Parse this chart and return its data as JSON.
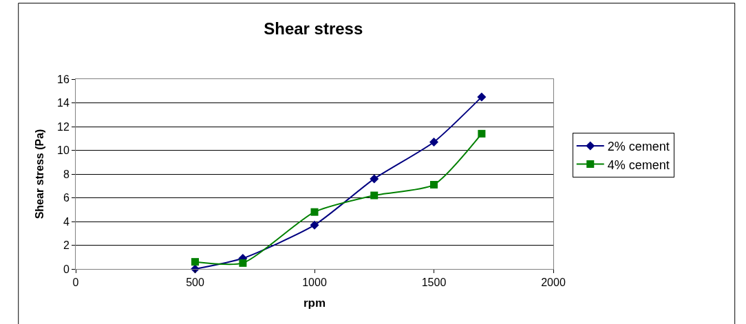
{
  "chart_data": {
    "type": "line",
    "title": "Shear stress",
    "xlabel": "rpm",
    "ylabel": "Shear stress (Pa)",
    "x": [
      500,
      700,
      1000,
      1250,
      1500,
      1700
    ],
    "series": [
      {
        "name": "2% cement",
        "color": "#000080",
        "marker": "diamond",
        "values": [
          0,
          0.9,
          3.7,
          7.6,
          10.7,
          14.5
        ]
      },
      {
        "name": "4% cement",
        "color": "#008000",
        "marker": "square",
        "values": [
          0.6,
          0.5,
          4.8,
          6.2,
          7.1,
          11.4
        ]
      }
    ],
    "xlim": [
      0,
      2000
    ],
    "xticks": [
      0,
      500,
      1000,
      1500,
      2000
    ],
    "ylim": [
      0,
      16
    ],
    "yticks": [
      0,
      2,
      4,
      6,
      8,
      10,
      12,
      14,
      16
    ],
    "grid": "y",
    "legend": "right",
    "line_style": "solid"
  }
}
